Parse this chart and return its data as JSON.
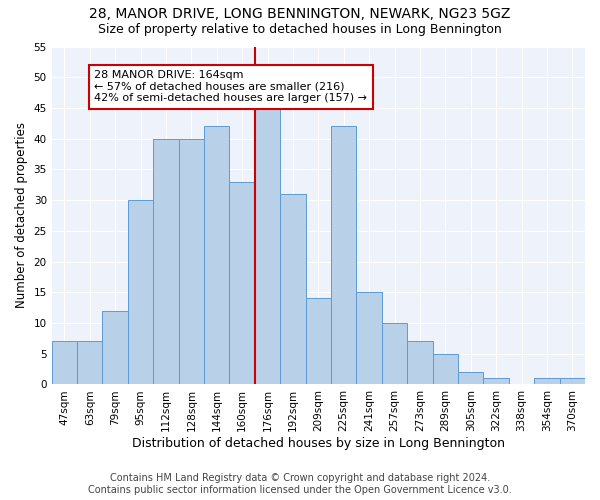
{
  "title1": "28, MANOR DRIVE, LONG BENNINGTON, NEWARK, NG23 5GZ",
  "title2": "Size of property relative to detached houses in Long Bennington",
  "xlabel": "Distribution of detached houses by size in Long Bennington",
  "ylabel": "Number of detached properties",
  "bar_labels": [
    "47sqm",
    "63sqm",
    "79sqm",
    "95sqm",
    "112sqm",
    "128sqm",
    "144sqm",
    "160sqm",
    "176sqm",
    "192sqm",
    "209sqm",
    "225sqm",
    "241sqm",
    "257sqm",
    "273sqm",
    "289sqm",
    "305sqm",
    "322sqm",
    "338sqm",
    "354sqm",
    "370sqm"
  ],
  "bar_values": [
    7,
    7,
    12,
    30,
    40,
    40,
    42,
    33,
    46,
    31,
    14,
    42,
    15,
    10,
    7,
    5,
    2,
    1,
    0,
    1,
    1
  ],
  "bar_color": "#b8d0e8",
  "bar_edge_color": "#5b9bd5",
  "vline_color": "#cc0000",
  "annotation_title": "28 MANOR DRIVE: 164sqm",
  "annotation_line1": "← 57% of detached houses are smaller (216)",
  "annotation_line2": "42% of semi-detached houses are larger (157) →",
  "annotation_box_color": "#ffffff",
  "annotation_box_edge": "#cc0000",
  "ylim": [
    0,
    55
  ],
  "yticks": [
    0,
    5,
    10,
    15,
    20,
    25,
    30,
    35,
    40,
    45,
    50,
    55
  ],
  "footer1": "Contains HM Land Registry data © Crown copyright and database right 2024.",
  "footer2": "Contains public sector information licensed under the Open Government Licence v3.0.",
  "bg_color": "#eef2fa",
  "title1_fontsize": 10,
  "title2_fontsize": 9,
  "xlabel_fontsize": 9,
  "ylabel_fontsize": 8.5,
  "footer_fontsize": 7,
  "tick_fontsize": 7.5,
  "annotation_fontsize": 8,
  "vline_bar_index": 8
}
